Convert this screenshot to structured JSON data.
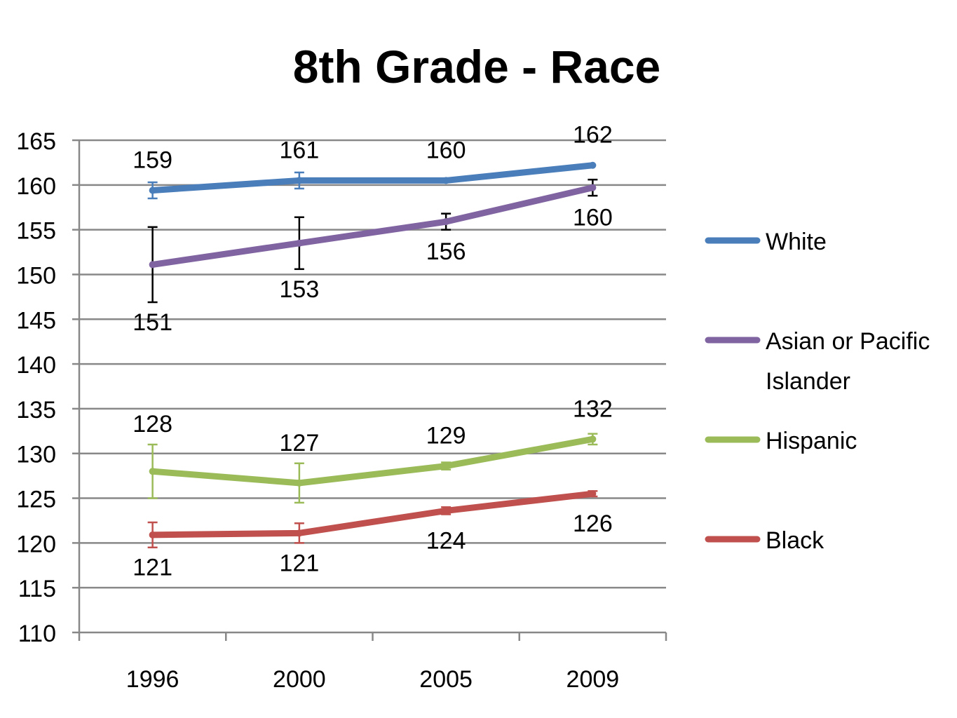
{
  "chart_data": {
    "type": "line",
    "title": "8th Grade - Race",
    "categories": [
      "1996",
      "2000",
      "2005",
      "2009"
    ],
    "ylim": [
      110,
      165
    ],
    "ytick_step": 5,
    "grid": true,
    "legend_position": "right",
    "series": [
      {
        "name": "White",
        "color": "#4a7ebb",
        "values": [
          159.4,
          160.5,
          160.5,
          162.2
        ],
        "error": [
          0.9,
          0.9,
          0,
          0
        ],
        "labels": [
          "159",
          "161",
          "160",
          "162"
        ],
        "label_position": "above",
        "error_bar_color": "#4a7ebb"
      },
      {
        "name": "Asian or Pacific Islander",
        "color": "#8064a2",
        "values": [
          151.1,
          153.5,
          155.9,
          159.7
        ],
        "error": [
          4.2,
          2.9,
          0.9,
          0.9
        ],
        "labels": [
          "151",
          "153",
          "156",
          "160"
        ],
        "label_position": "below",
        "error_bar_color": "#000000"
      },
      {
        "name": "Hispanic",
        "color": "#9bbb59",
        "values": [
          128.0,
          126.7,
          128.6,
          131.6
        ],
        "error": [
          3.0,
          2.2,
          0.4,
          0.6
        ],
        "labels": [
          "128",
          "127",
          "129",
          "132"
        ],
        "label_position": "above",
        "error_bar_color": "#9bbb59"
      },
      {
        "name": "Black",
        "color": "#c0504d",
        "values": [
          120.9,
          121.1,
          123.6,
          125.5
        ],
        "error": [
          1.4,
          1.1,
          0.4,
          0.3
        ],
        "labels": [
          "121",
          "121",
          "124",
          "126"
        ],
        "label_position": "below",
        "error_bar_color": "#c0504d"
      }
    ]
  }
}
